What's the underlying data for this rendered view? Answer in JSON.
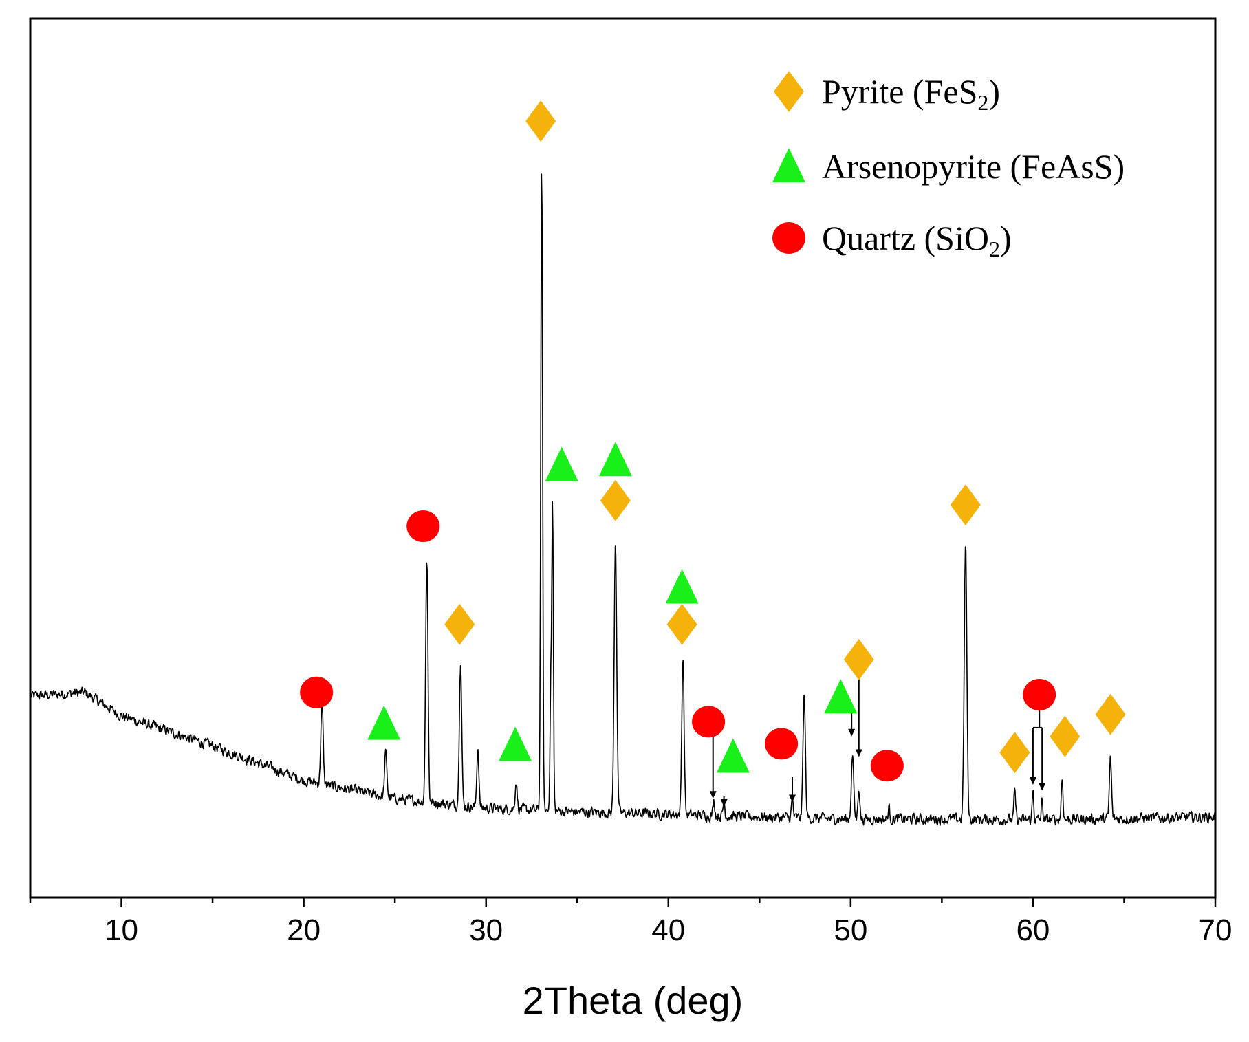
{
  "chart_data": {
    "type": "line",
    "title": "",
    "xlabel": "2Theta (deg)",
    "ylabel": "",
    "xlim": [
      5,
      70
    ],
    "ylim": [
      -120,
      1080
    ],
    "x_ticks_major": [
      10,
      20,
      30,
      40,
      50,
      60,
      70
    ],
    "x_tick_labels": [
      "10",
      "20",
      "30",
      "40",
      "50",
      "60",
      "70"
    ],
    "x_ticks_minor": [
      5,
      15,
      25,
      35,
      45,
      55,
      65
    ],
    "y_ticks": [],
    "grid": false,
    "legend_position": "top-right",
    "colors": {
      "line": "#000000",
      "pyrite": "#F5B20A",
      "arsenopyrite": "#19F019",
      "quartz": "#FF0000"
    },
    "legend": [
      {
        "key": "pyrite",
        "marker": "diamond",
        "label": "Pyrite (FeS",
        "sub": "2",
        "tail": ")"
      },
      {
        "key": "arsenopyrite",
        "marker": "triangle",
        "label": "Arsenopyrite (FeAsS)",
        "sub": "",
        "tail": ""
      },
      {
        "key": "quartz",
        "marker": "circle",
        "label": "Quartz (SiO",
        "sub": "2",
        "tail": ")"
      }
    ],
    "baseline": {
      "x": [
        5,
        8,
        10,
        15,
        20,
        25,
        30,
        35,
        40,
        45,
        50,
        55,
        60,
        65,
        70
      ],
      "y": [
        155,
        160,
        128,
        87,
        40,
        15,
        2,
        -3,
        -6,
        -10,
        -13,
        -13,
        -14,
        -12,
        -10
      ]
    },
    "peaks": [
      {
        "x": 21.0,
        "height": 110,
        "width": 0.09
      },
      {
        "x": 24.5,
        "height": 60,
        "width": 0.09
      },
      {
        "x": 26.75,
        "height": 335,
        "width": 0.09
      },
      {
        "x": 28.6,
        "height": 200,
        "width": 0.09
      },
      {
        "x": 29.55,
        "height": 82,
        "width": 0.08
      },
      {
        "x": 31.65,
        "height": 38,
        "width": 0.08
      },
      {
        "x": 33.05,
        "height": 890,
        "width": 0.07
      },
      {
        "x": 33.55,
        "height": 170,
        "width": 0.06
      },
      {
        "x": 33.65,
        "height": 415,
        "width": 0.06
      },
      {
        "x": 37.1,
        "height": 372,
        "width": 0.1
      },
      {
        "x": 40.8,
        "height": 217,
        "width": 0.09
      },
      {
        "x": 42.5,
        "height": 20,
        "width": 0.07
      },
      {
        "x": 43.05,
        "height": 18,
        "width": 0.07
      },
      {
        "x": 46.8,
        "height": 25,
        "width": 0.07
      },
      {
        "x": 47.45,
        "height": 170,
        "width": 0.09
      },
      {
        "x": 50.1,
        "height": 88,
        "width": 0.09
      },
      {
        "x": 50.45,
        "height": 45,
        "width": 0.07
      },
      {
        "x": 52.1,
        "height": 15,
        "width": 0.07
      },
      {
        "x": 56.3,
        "height": 377,
        "width": 0.1
      },
      {
        "x": 59.0,
        "height": 38,
        "width": 0.07
      },
      {
        "x": 60.0,
        "height": 40,
        "width": 0.06
      },
      {
        "x": 60.5,
        "height": 25,
        "width": 0.06
      },
      {
        "x": 61.6,
        "height": 55,
        "width": 0.07
      },
      {
        "x": 64.25,
        "height": 83,
        "width": 0.08
      }
    ],
    "markers": [
      {
        "phase": "quartz",
        "x": 20.7,
        "y": 160
      },
      {
        "phase": "arsenopyrite",
        "x": 24.4,
        "y": 117
      },
      {
        "phase": "quartz",
        "x": 26.55,
        "y": 387
      },
      {
        "phase": "pyrite",
        "x": 28.55,
        "y": 253
      },
      {
        "phase": "arsenopyrite",
        "x": 31.6,
        "y": 88
      },
      {
        "phase": "pyrite",
        "x": 33.0,
        "y": 940
      },
      {
        "phase": "arsenopyrite",
        "x": 34.15,
        "y": 470
      },
      {
        "phase": "arsenopyrite",
        "x": 37.1,
        "y": 477
      },
      {
        "phase": "pyrite",
        "x": 37.1,
        "y": 422
      },
      {
        "phase": "arsenopyrite",
        "x": 40.75,
        "y": 303
      },
      {
        "phase": "pyrite",
        "x": 40.75,
        "y": 253
      },
      {
        "phase": "quartz",
        "x": 42.2,
        "y": 120
      },
      {
        "phase": "arsenopyrite",
        "x": 43.55,
        "y": 72
      },
      {
        "phase": "quartz",
        "x": 46.2,
        "y": 90
      },
      {
        "phase": "arsenopyrite",
        "x": 49.45,
        "y": 153
      },
      {
        "phase": "pyrite",
        "x": 50.45,
        "y": 205
      },
      {
        "phase": "quartz",
        "x": 52.0,
        "y": 60
      },
      {
        "phase": "pyrite",
        "x": 56.3,
        "y": 416
      },
      {
        "phase": "pyrite",
        "x": 59.0,
        "y": 78
      },
      {
        "phase": "quartz",
        "x": 60.35,
        "y": 157
      },
      {
        "phase": "pyrite",
        "x": 61.75,
        "y": 100
      },
      {
        "phase": "pyrite",
        "x": 64.25,
        "y": 130
      }
    ],
    "arrows": [
      {
        "x": 42.45,
        "y_from": 100,
        "y_to": 15
      },
      {
        "x": 43.05,
        "y_from": 18,
        "y_to": 4
      },
      {
        "x": 46.8,
        "y_from": 45,
        "y_to": 10
      },
      {
        "x": 50.05,
        "y_from": 140,
        "y_to": 100
      },
      {
        "x": 50.45,
        "y_from": 187,
        "y_to": 72
      },
      {
        "x": 60.0,
        "y_from": 112,
        "y_to": 34,
        "pair": 60.5
      },
      {
        "x": 60.5,
        "y_from": 112,
        "y_to": 26
      }
    ]
  }
}
